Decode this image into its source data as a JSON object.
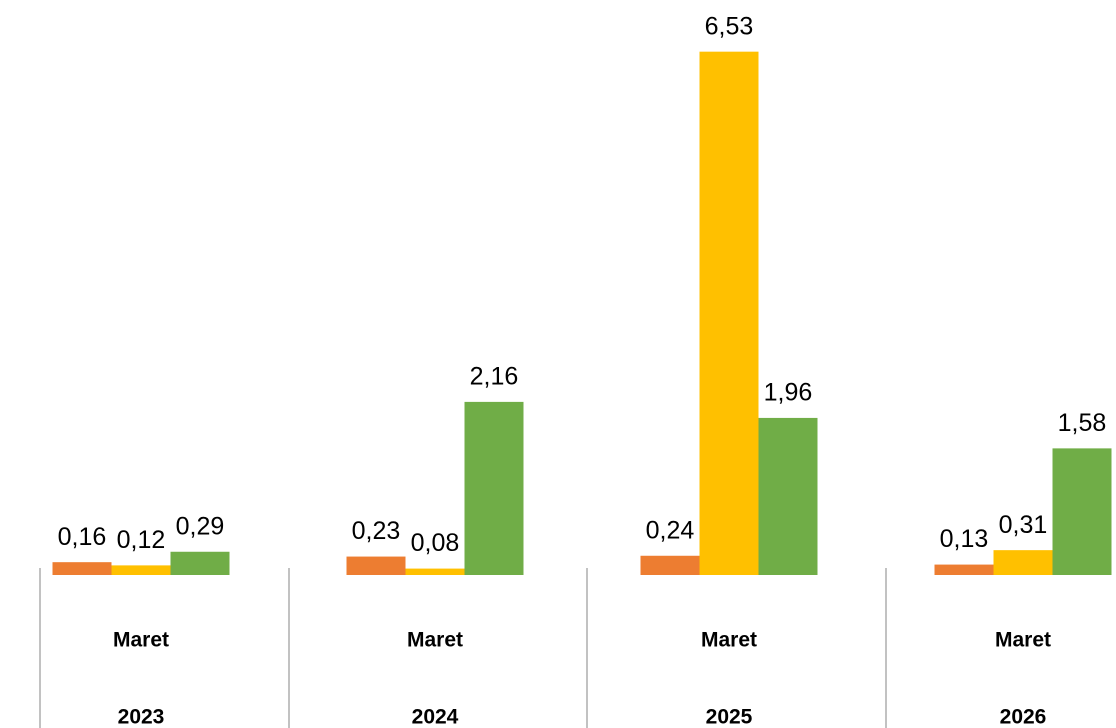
{
  "chart_data": {
    "type": "bar",
    "categories": [
      [
        "Maret",
        "2023"
      ],
      [
        "Maret",
        "2024"
      ],
      [
        "Maret",
        "2025"
      ],
      [
        "Maret",
        "2026"
      ]
    ],
    "series": [
      {
        "color": "#ed7d31",
        "values": [
          0.16,
          0.23,
          0.24,
          0.13
        ],
        "value_labels": [
          "0,16",
          "0,23",
          "0,24",
          "0,13"
        ]
      },
      {
        "color": "#ffc000",
        "values": [
          0.12,
          0.08,
          6.53,
          0.31
        ],
        "value_labels": [
          "0,12",
          "0,08",
          "6,53",
          "0,31"
        ]
      },
      {
        "color": "#70ad47",
        "values": [
          0.29,
          2.16,
          1.96,
          1.58
        ],
        "value_labels": [
          "0,29",
          "2,16",
          "1,96",
          "1,58"
        ]
      }
    ],
    "ylim": [
      0,
      7
    ]
  }
}
